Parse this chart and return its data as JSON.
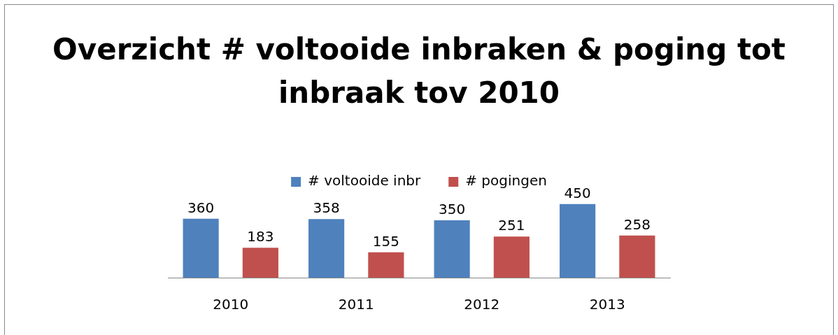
{
  "chart_data": {
    "type": "bar",
    "title": "Overzicht # voltooide inbraken & poging tot inbraak tov 2010",
    "categories": [
      "2010",
      "2011",
      "2012",
      "2013"
    ],
    "series": [
      {
        "name": "# voltooide inbr",
        "color": "#4f81bd",
        "values": [
          360,
          358,
          350,
          450
        ]
      },
      {
        "name": "# pogingen",
        "color": "#c0504d",
        "values": [
          183,
          155,
          251,
          258
        ]
      }
    ],
    "data_labels": true,
    "legend": "top"
  }
}
